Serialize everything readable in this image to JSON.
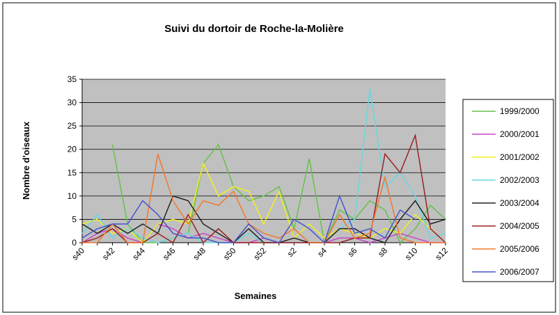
{
  "chart_data": {
    "type": "line",
    "title": "Suivi du dortoir  de Roche-la-Molière",
    "xlabel": "Semaines",
    "ylabel": "Nombre d'oiseaux",
    "categories": [
      "s40",
      null,
      "s42",
      null,
      "s44",
      null,
      "s46",
      null,
      "s48",
      null,
      "s50",
      null,
      "s52",
      null,
      "s2",
      null,
      "s4",
      null,
      "s6",
      null,
      "s8",
      null,
      "s10",
      null,
      "s12"
    ],
    "ylim": [
      0,
      35
    ],
    "yticks": [
      0,
      5,
      10,
      15,
      20,
      25,
      30,
      35
    ],
    "grid": true,
    "legend": "right",
    "series": [
      {
        "name": "1999/2000",
        "color": "#66c14a",
        "values": [
          null,
          null,
          21,
          4,
          0,
          0,
          1,
          2,
          17,
          21,
          12,
          9,
          10,
          12,
          3,
          18,
          0,
          7,
          5,
          9,
          7,
          0,
          3,
          8,
          5
        ]
      },
      {
        "name": "2000/2001",
        "color": "#cc44cc",
        "values": [
          0,
          2,
          3,
          1,
          0,
          4,
          3,
          1,
          2,
          1,
          0,
          0,
          1,
          0,
          0,
          0,
          0,
          1,
          1,
          0,
          1,
          2,
          1,
          0,
          0
        ]
      },
      {
        "name": "2001/2002",
        "color": "#f0f020",
        "values": [
          4,
          5,
          2,
          3,
          0,
          4,
          5,
          4,
          17,
          10,
          12,
          11,
          4,
          11,
          1,
          4,
          1,
          3,
          2,
          1,
          3,
          2,
          6,
          3,
          0
        ]
      },
      {
        "name": "2002/2003",
        "color": "#66d8e0",
        "values": [
          2,
          6,
          1,
          3,
          1,
          0,
          1,
          2,
          0,
          0,
          0,
          2,
          0,
          0,
          0,
          0,
          0,
          3,
          5,
          33,
          12,
          15,
          10,
          1,
          2
        ]
      },
      {
        "name": "2003/2004",
        "color": "#222222",
        "values": [
          4,
          2,
          4,
          2,
          4,
          2,
          10,
          9,
          4,
          2,
          0,
          3,
          0,
          0,
          1,
          0,
          0,
          3,
          3,
          1,
          0,
          5,
          9,
          4,
          5
        ]
      },
      {
        "name": "2004/2005",
        "color": "#992222",
        "values": [
          0,
          1,
          3,
          0,
          0,
          2,
          0,
          6,
          0,
          3,
          0,
          0,
          0,
          0,
          0,
          0,
          0,
          0,
          1,
          1,
          19,
          15,
          23,
          3,
          0
        ]
      },
      {
        "name": "2005/2006",
        "color": "#f07830",
        "values": [
          0,
          0,
          4,
          0,
          0,
          19,
          9,
          4,
          9,
          8,
          11,
          4,
          2,
          1,
          3,
          0,
          0,
          6,
          1,
          2,
          14,
          1,
          0,
          0,
          0
        ]
      },
      {
        "name": "2006/2007",
        "color": "#4455cc",
        "values": [
          1,
          3,
          4,
          4,
          9,
          6,
          2,
          1,
          1,
          0,
          0,
          4,
          1,
          0,
          5,
          3,
          0,
          10,
          2,
          3,
          1,
          7,
          5,
          null,
          null
        ]
      }
    ]
  }
}
